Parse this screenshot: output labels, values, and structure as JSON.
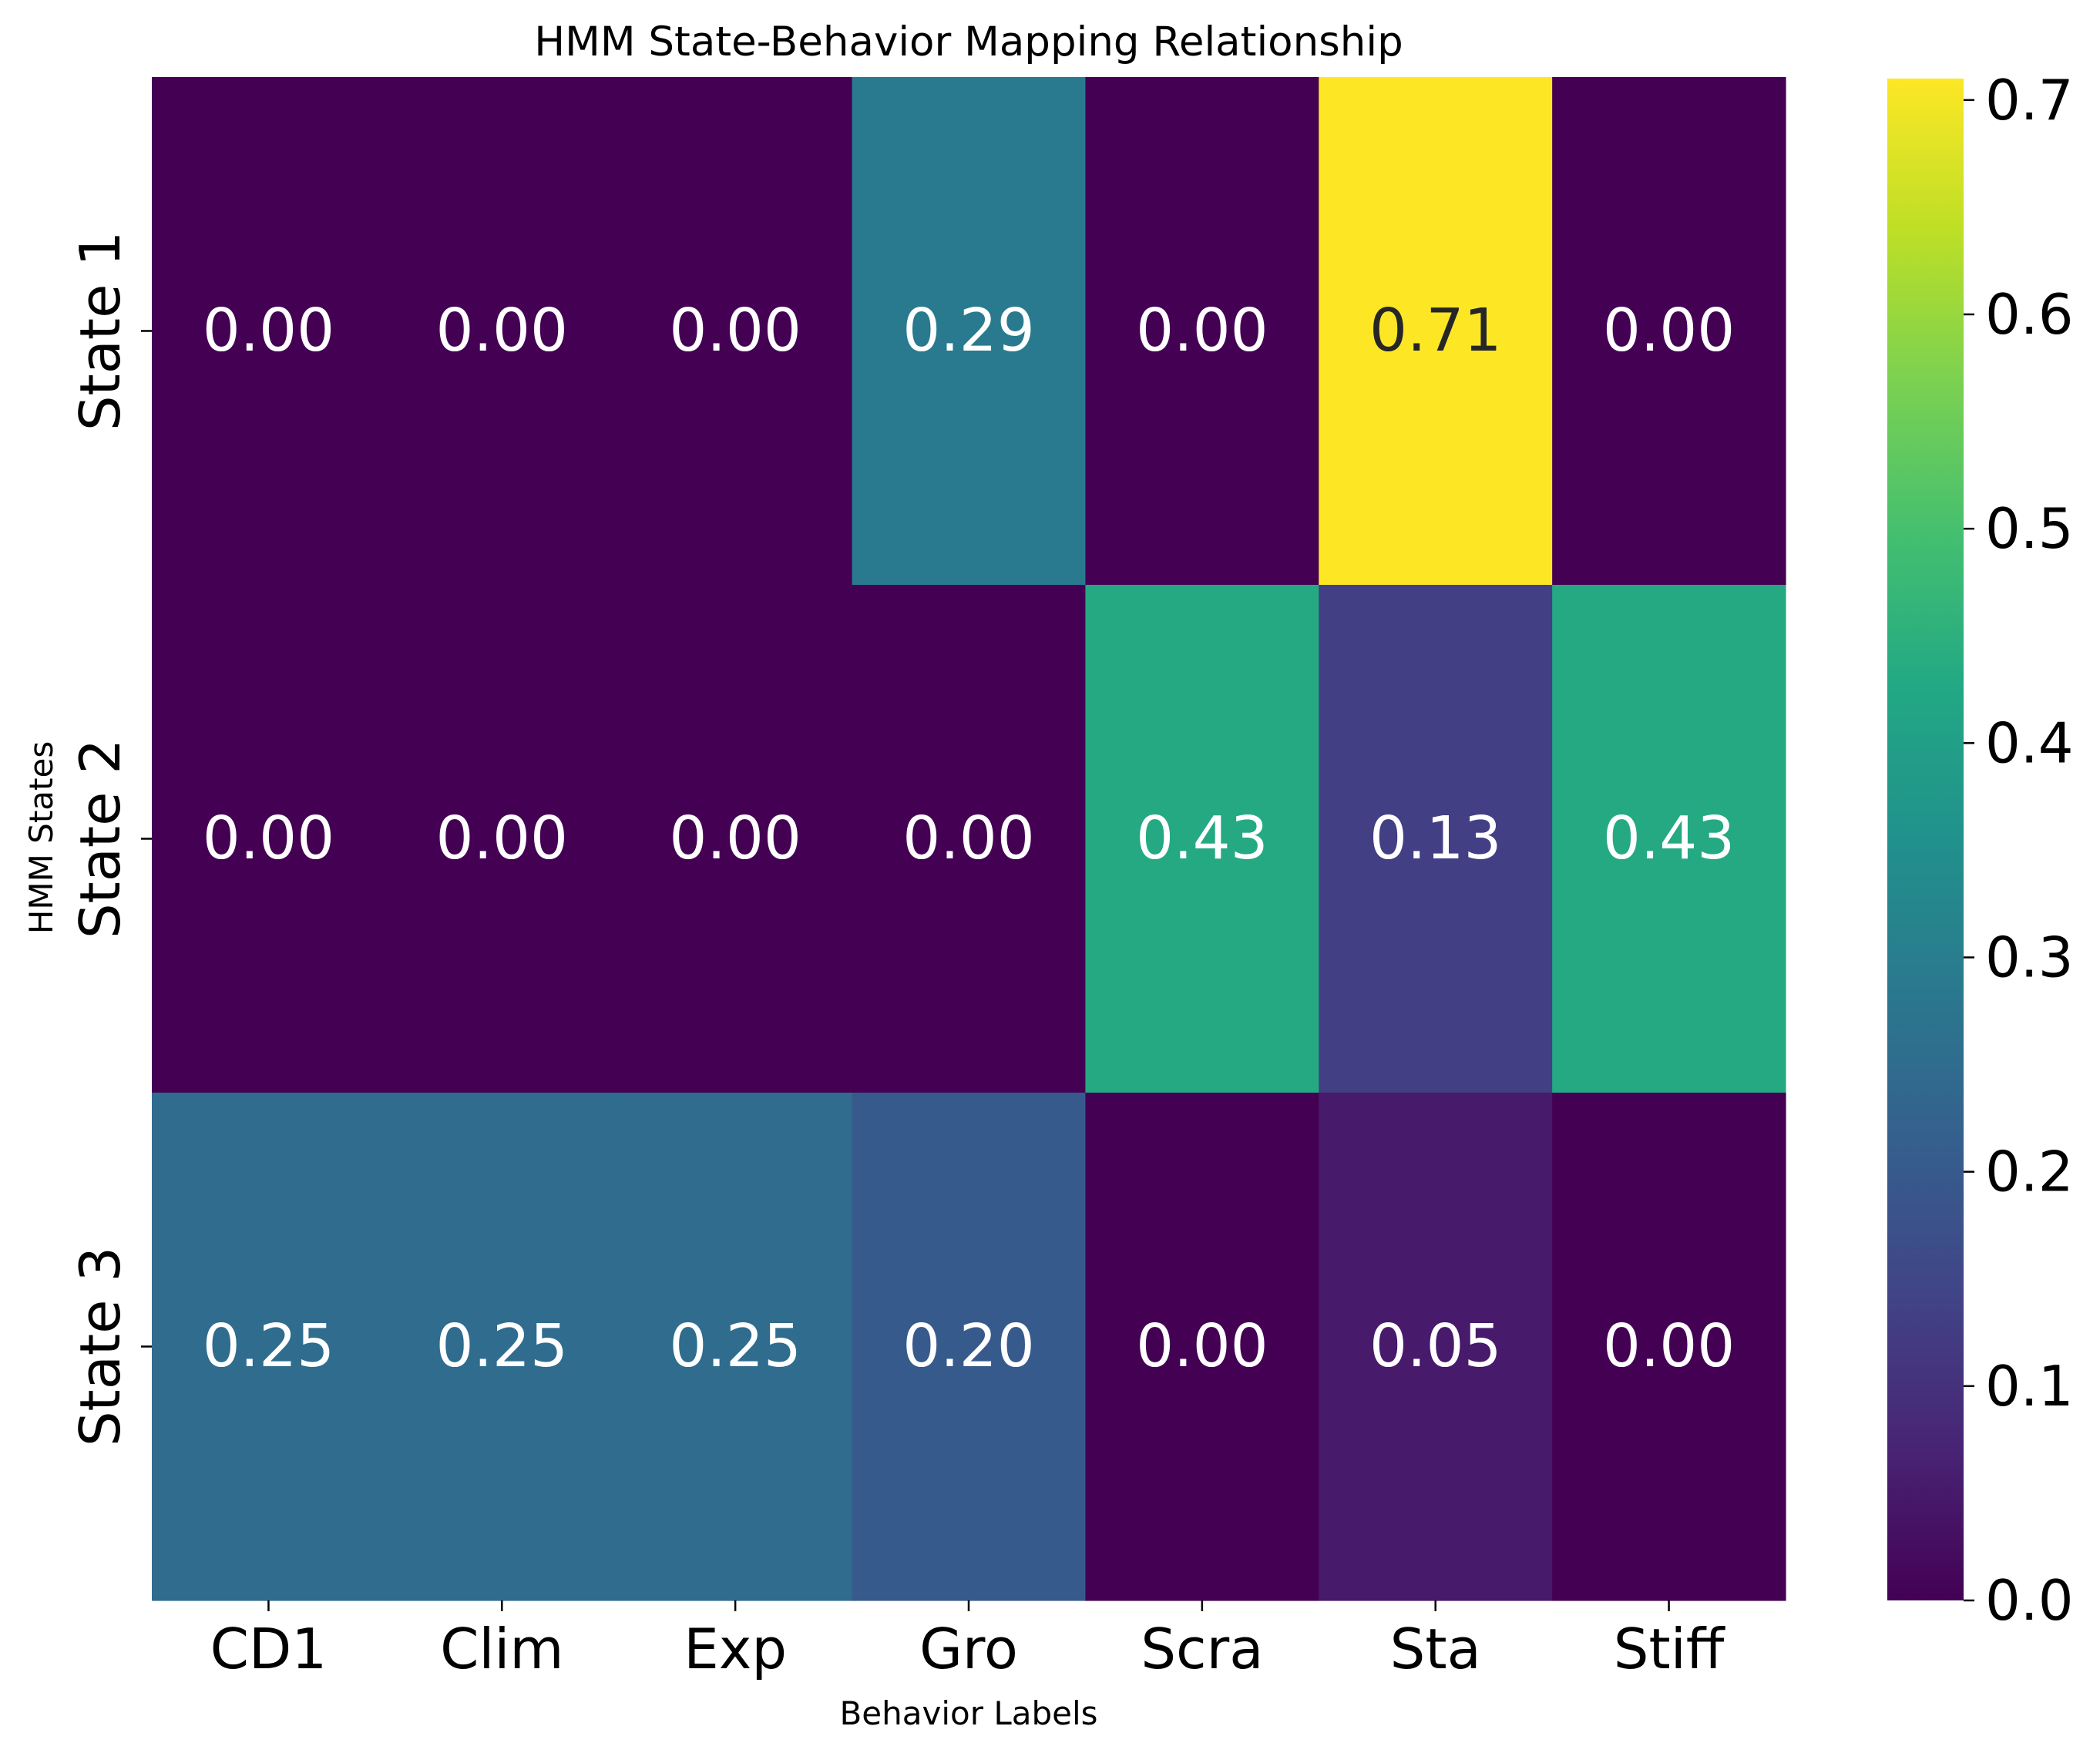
{
  "chart_data": {
    "type": "heatmap",
    "title": "HMM State-Behavior Mapping Relationship",
    "xlabel": "Behavior Labels",
    "ylabel": "HMM States",
    "columns": [
      "CD1",
      "Clim",
      "Exp",
      "Gro",
      "Scra",
      "Sta",
      "Stiff"
    ],
    "rows": [
      "State 1",
      "State 2",
      "State 3"
    ],
    "values": [
      [
        0.0,
        0.0,
        0.0,
        0.29,
        0.0,
        0.71,
        0.0
      ],
      [
        0.0,
        0.0,
        0.0,
        0.0,
        0.43,
        0.13,
        0.43
      ],
      [
        0.25,
        0.25,
        0.25,
        0.2,
        0.0,
        0.05,
        0.0
      ]
    ],
    "cell_labels": [
      [
        "0.00",
        "0.00",
        "0.00",
        "0.29",
        "0.00",
        "0.71",
        "0.00"
      ],
      [
        "0.00",
        "0.00",
        "0.00",
        "0.00",
        "0.43",
        "0.13",
        "0.43"
      ],
      [
        "0.25",
        "0.25",
        "0.25",
        "0.20",
        "0.00",
        "0.05",
        "0.00"
      ]
    ],
    "colormap": "viridis",
    "vmin": 0.0,
    "vmax": 0.71,
    "colorbar_ticks": [
      0.0,
      0.1,
      0.2,
      0.3,
      0.4,
      0.5,
      0.6,
      0.7
    ],
    "colorbar_tick_labels": [
      "0.0",
      "0.1",
      "0.2",
      "0.3",
      "0.4",
      "0.5",
      "0.6",
      "0.7"
    ],
    "grid": false
  }
}
